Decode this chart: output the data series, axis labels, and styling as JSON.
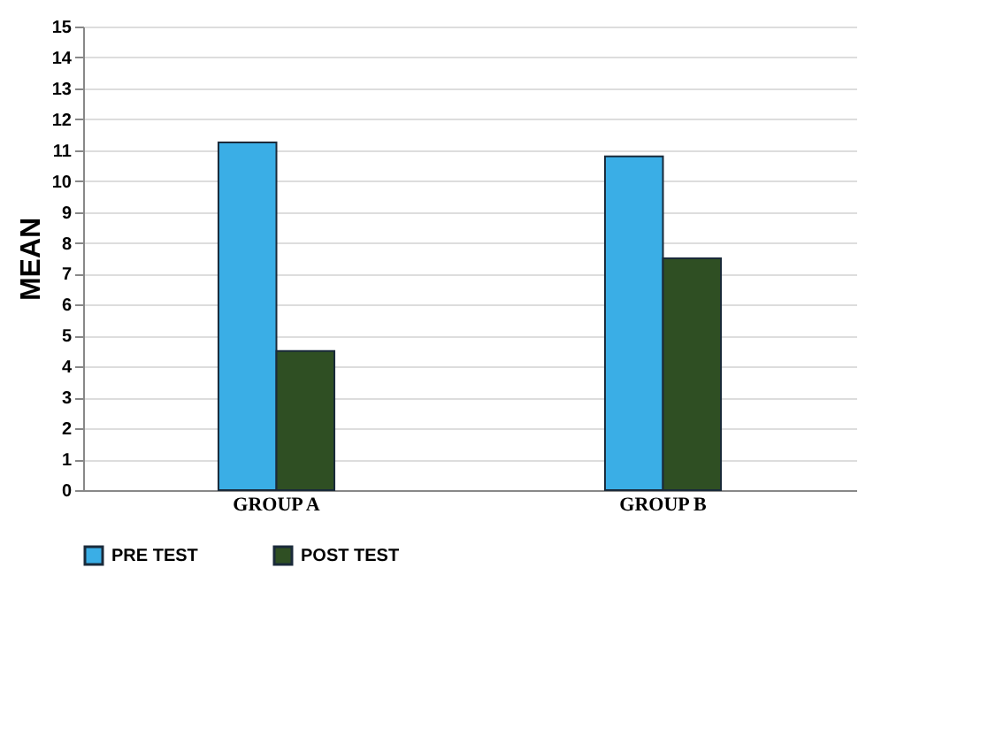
{
  "chart_data": {
    "type": "bar",
    "ylabel": "MEAN",
    "categories": [
      "GROUP A",
      "GROUP B"
    ],
    "series": [
      {
        "name": "PRE TEST",
        "color": "#3aaee6",
        "values": [
          11.25,
          10.8
        ]
      },
      {
        "name": "POST TEST",
        "color": "#2f4f23",
        "values": [
          4.5,
          7.5
        ]
      }
    ],
    "ylim": [
      0,
      15
    ],
    "yticks": [
      0,
      1,
      2,
      3,
      4,
      5,
      6,
      7,
      8,
      9,
      10,
      11,
      12,
      13,
      14,
      15
    ],
    "grid": "y",
    "legend": "bottom"
  }
}
